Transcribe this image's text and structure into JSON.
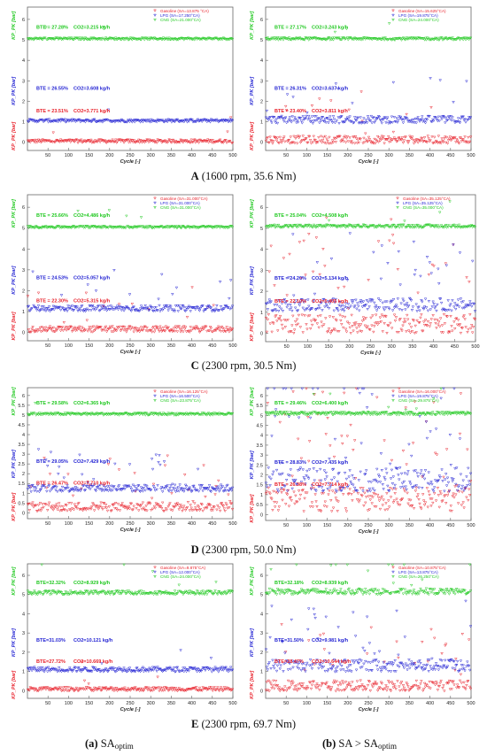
{
  "figure": {
    "rows": [
      {
        "letter": "A",
        "caption": " (1600 rpm, 35.6 Nm)"
      },
      {
        "letter": "C",
        "caption": " (2300 rpm, 30.5 Nm)"
      },
      {
        "letter": "D",
        "caption": " (2300 rpm, 50.0 Nm)"
      },
      {
        "letter": "E",
        "caption": " (2300 rpm, 69.7 Nm)"
      }
    ],
    "column_captions": {
      "left": {
        "letter": "(a)",
        "main": " SA",
        "sub": "optim",
        "rest": ""
      },
      "right": {
        "letter": "(b)",
        "main": " SA > SA",
        "sub": "optim",
        "rest": ""
      }
    }
  },
  "colors": {
    "gasoline": "#e8202a",
    "lpg": "#1f1fd2",
    "cng": "#1fc81f"
  },
  "common": {
    "x_ticks": [
      "50",
      "100",
      "150",
      "200",
      "250",
      "300",
      "350",
      "400",
      "450",
      "500"
    ],
    "xlabel": "Cycle [-]",
    "ylabel": "KP_PK [bar]"
  },
  "chart_data": [
    {
      "id": "A-a",
      "type": "scatter",
      "xlim": [
        0,
        500
      ],
      "y_ticks": [
        "0",
        "1",
        "2",
        "3",
        "4",
        "5",
        "6"
      ],
      "ylim": [
        -0.4,
        6.6
      ],
      "legend": [
        "Gasoline (SA=13.875 °CA)",
        "LPG (SA=17.250°CA)",
        "CNG (SA=21.000°CA)"
      ],
      "annotations": [
        {
          "bte": "BTE = 27.28%",
          "co2": "CO2=3.215 kg/h"
        },
        {
          "bte": "BTE = 26.55%",
          "co2": "CO2=3.608 kg/h"
        },
        {
          "bte": "BTE = 23.51%",
          "co2": "CO2=3.771 kg/h"
        }
      ],
      "series": [
        {
          "name": "Gasoline",
          "baseline": 0.05,
          "scatter": 0.08,
          "outliers": 0.002
        },
        {
          "name": "LPG",
          "baseline": 1.05,
          "scatter": 0.07,
          "outliers": 0.002
        },
        {
          "name": "CNG",
          "baseline": 5.05,
          "scatter": 0.05,
          "outliers": 0.001
        }
      ]
    },
    {
      "id": "A-b",
      "type": "scatter",
      "xlim": [
        0,
        500
      ],
      "y_ticks": [
        "0",
        "1",
        "2",
        "3",
        "4",
        "5",
        "6"
      ],
      "ylim": [
        -0.4,
        6.6
      ],
      "legend": [
        "Gasoline (SA=15.625°CA)",
        "LPG (SA=19.875°CA)",
        "CNG (SA=24.000°CA)"
      ],
      "annotations": [
        {
          "bte": "BTE = 27.17%",
          "co2": "CO2=3.243 kg/h"
        },
        {
          "bte": "BTE = 26.31%",
          "co2": "CO2=3.637 kg/h"
        },
        {
          "bte": "BTE = 23.40%",
          "co2": "CO2=3.811 kg/h"
        }
      ],
      "series": [
        {
          "name": "Gasoline",
          "baseline": 0.12,
          "scatter": 0.18,
          "outliers": 0.02
        },
        {
          "name": "LPG",
          "baseline": 1.1,
          "scatter": 0.18,
          "outliers": 0.015
        },
        {
          "name": "CNG",
          "baseline": 5.05,
          "scatter": 0.06,
          "outliers": 0.003
        }
      ]
    },
    {
      "id": "C-a",
      "type": "scatter",
      "xlim": [
        0,
        500
      ],
      "y_ticks": [
        "0",
        "1",
        "2",
        "3",
        "4",
        "5",
        "6"
      ],
      "ylim": [
        -0.4,
        6.6
      ],
      "legend": [
        "Gasoline (SA=31.000°CA)",
        "LPG (SA=31.000°CA)",
        "CNG (SA=31.000°CA)"
      ],
      "annotations": [
        {
          "bte": "BTE = 25.66%",
          "co2": "CO2=4.486 kg/h"
        },
        {
          "bte": "BTE = 24.53%",
          "co2": "CO2=5.057 kg/h"
        },
        {
          "bte": "BTE = 22.30%",
          "co2": "CO2=5.315 kg/h"
        }
      ],
      "series": [
        {
          "name": "Gasoline",
          "baseline": 0.15,
          "scatter": 0.14,
          "outliers": 0.015
        },
        {
          "name": "LPG",
          "baseline": 1.15,
          "scatter": 0.14,
          "outliers": 0.01
        },
        {
          "name": "CNG",
          "baseline": 5.05,
          "scatter": 0.05,
          "outliers": 0.002
        }
      ]
    },
    {
      "id": "C-b",
      "type": "scatter",
      "xlim": [
        0,
        500
      ],
      "y_ticks": [
        "0",
        "1",
        "2",
        "3",
        "4",
        "5",
        "6"
      ],
      "ylim": [
        -0.4,
        6.6
      ],
      "legend": [
        "Gasoline (SA=35.125°CA)",
        "LPG (SA=35.125°CA)",
        "CNG (SA=35.000°CA)"
      ],
      "annotations": [
        {
          "bte": "BTE = 25.04%",
          "co2": "CO2=4.508 kg/h"
        },
        {
          "bte": "BTE = 24.20%",
          "co2": "CO2=5.134 kg/h"
        },
        {
          "bte": "BTE = 22.10%",
          "co2": "CO2=5.405 kg/h"
        }
      ],
      "series": [
        {
          "name": "Gasoline",
          "baseline": 0.45,
          "scatter": 0.45,
          "outliers": 0.04
        },
        {
          "name": "LPG",
          "baseline": 1.35,
          "scatter": 0.3,
          "outliers": 0.03
        },
        {
          "name": "CNG",
          "baseline": 5.1,
          "scatter": 0.07,
          "outliers": 0.003
        }
      ]
    },
    {
      "id": "D-a",
      "type": "scatter",
      "xlim": [
        0,
        500
      ],
      "y_ticks": [
        "0",
        "0.5",
        "1",
        "1.5",
        "2",
        "2.5",
        "3",
        "3.5",
        "4",
        "4.5",
        "5",
        "5.5",
        "6"
      ],
      "ylim": [
        -0.3,
        6.4
      ],
      "legend": [
        "Gasoline (SA=16.125°CA)",
        "LPG (SA=16.500°CA)",
        "CNG (SA=23.875°CA)"
      ],
      "annotations": [
        {
          "bte": "BTE = 29.58%",
          "co2": "CO2=6.365 kg/h"
        },
        {
          "bte": "BTE = 29.05%",
          "co2": "CO2=7.429 kg/h"
        },
        {
          "bte": "BTE = 26.47%",
          "co2": "CO2=7.710 kg/h"
        }
      ],
      "series": [
        {
          "name": "Gasoline",
          "baseline": 0.3,
          "scatter": 0.22,
          "outliers": 0.03
        },
        {
          "name": "LPG",
          "baseline": 1.25,
          "scatter": 0.18,
          "outliers": 0.02
        },
        {
          "name": "CNG",
          "baseline": 5.05,
          "scatter": 0.06,
          "outliers": 0.003
        }
      ]
    },
    {
      "id": "D-b",
      "type": "scatter",
      "xlim": [
        0,
        500
      ],
      "y_ticks": [
        "0",
        "0.5",
        "1",
        "1.5",
        "2",
        "2.5",
        "3",
        "3.5",
        "4",
        "4.5",
        "5",
        "5.5",
        "6"
      ],
      "ylim": [
        -0.3,
        6.4
      ],
      "legend": [
        "Gasoline (SA=16.000°CA)",
        "LPG (SA=19.875°CA)",
        "CNG (SA=29.875°CA)"
      ],
      "annotations": [
        {
          "bte": "BTE = 29.46%",
          "co2": "CO2=6.400 kg/h"
        },
        {
          "bte": "BTE = 28.83%",
          "co2": "CO2=7.435 kg/h"
        },
        {
          "bte": "BTE = 26.38%",
          "co2": "CO2=7.714 kg/h"
        }
      ],
      "series": [
        {
          "name": "Gasoline",
          "baseline": 0.75,
          "scatter": 0.6,
          "outliers": 0.05
        },
        {
          "name": "LPG",
          "baseline": 1.75,
          "scatter": 0.6,
          "outliers": 0.05
        },
        {
          "name": "CNG",
          "baseline": 5.1,
          "scatter": 0.08,
          "outliers": 0.004
        }
      ]
    },
    {
      "id": "E-a",
      "type": "scatter",
      "xlim": [
        0,
        500
      ],
      "y_ticks": [
        "0",
        "1",
        "2",
        "3",
        "4",
        "5",
        "6"
      ],
      "ylim": [
        -0.4,
        6.6
      ],
      "legend": [
        "Gasoline (SA=9.875°CA)",
        "LPG (SA=12.000°CA)",
        "CNG (SA=24.000°CA)"
      ],
      "annotations": [
        {
          "bte": "BTE=32.32%",
          "co2": "CO2=8.929 kg/h"
        },
        {
          "bte": "BTE=31.03%",
          "co2": "CO2=10.121 kg/h"
        },
        {
          "bte": "BTE=27.72%",
          "co2": "CO2=10.669 kg/h"
        }
      ],
      "series": [
        {
          "name": "Gasoline",
          "baseline": 0.08,
          "scatter": 0.1,
          "outliers": 0.006
        },
        {
          "name": "LPG",
          "baseline": 1.1,
          "scatter": 0.12,
          "outliers": 0.008
        },
        {
          "name": "CNG",
          "baseline": 5.1,
          "scatter": 0.1,
          "outliers": 0.006
        }
      ]
    },
    {
      "id": "E-b",
      "type": "scatter",
      "xlim": [
        0,
        500
      ],
      "y_ticks": [
        "0",
        "1",
        "2",
        "3",
        "4",
        "5",
        "6"
      ],
      "ylim": [
        -0.4,
        6.6
      ],
      "legend": [
        "Gasoline (SA=10.875°CA)",
        "LPG (SA=13.875°CA)",
        "CNG (SA=26.250°CA)"
      ],
      "annotations": [
        {
          "bte": "BTE=32.18%",
          "co2": "CO2=8.939 kg/h"
        },
        {
          "bte": "BTE=31.50%",
          "co2": "CO2=9.981 kg/h"
        },
        {
          "bte": "BTE=28.47%",
          "co2": "CO2=10.644 kg/h"
        }
      ],
      "series": [
        {
          "name": "Gasoline",
          "baseline": 0.25,
          "scatter": 0.28,
          "outliers": 0.03
        },
        {
          "name": "LPG",
          "baseline": 1.3,
          "scatter": 0.32,
          "outliers": 0.03
        },
        {
          "name": "CNG",
          "baseline": 5.15,
          "scatter": 0.15,
          "outliers": 0.01
        }
      ]
    }
  ]
}
